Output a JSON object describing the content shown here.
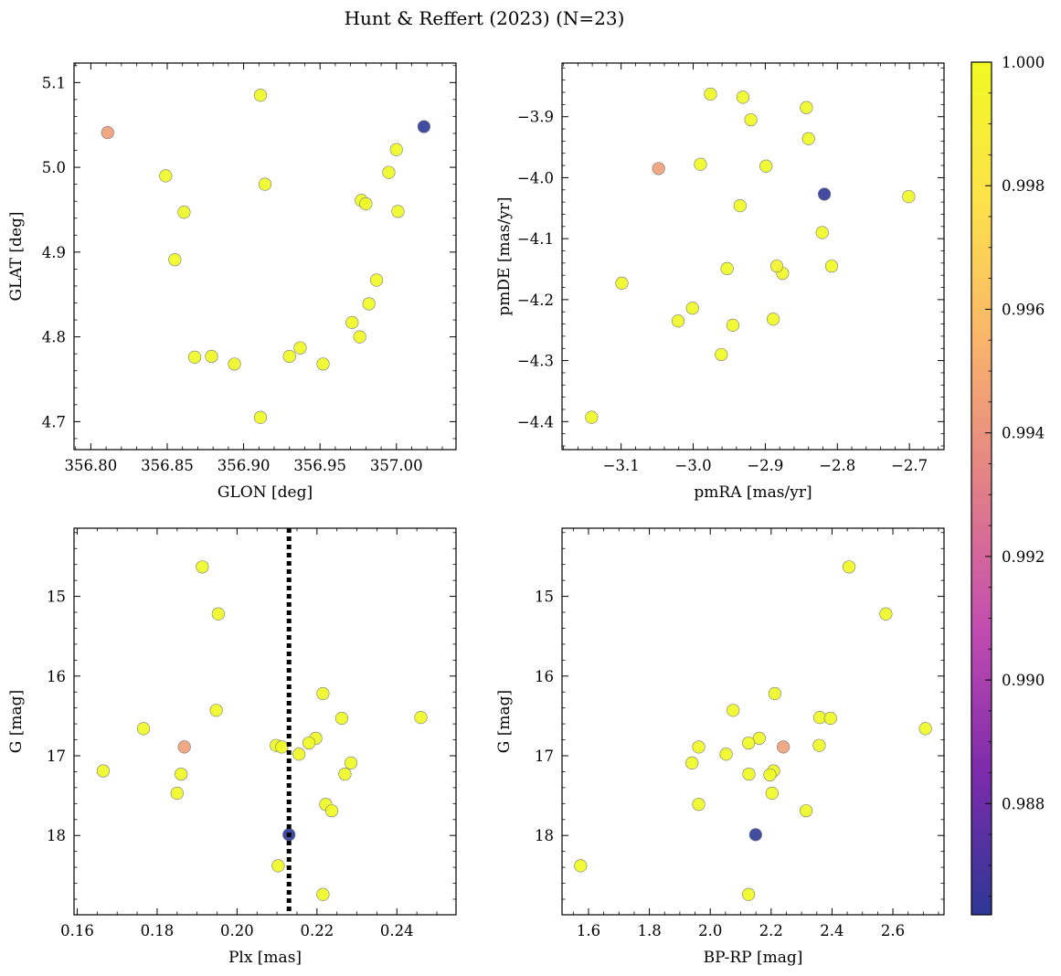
{
  "figure": {
    "title": "Hunt & Reffert (2023) (N=23)"
  },
  "chart_data": [
    {
      "type": "scatter",
      "xlabel": "GLON [deg]",
      "ylabel": "GLAT [deg]",
      "xlim": [
        356.789,
        357.039
      ],
      "ylim": [
        4.667,
        5.123
      ],
      "xticks": [
        356.8,
        356.85,
        356.9,
        356.95,
        357.0
      ],
      "xtick_labels": [
        "356.80",
        "356.85",
        "356.90",
        "356.95",
        "357.00"
      ],
      "yticks": [
        4.7,
        4.8,
        4.9,
        5.0,
        5.1
      ],
      "ytick_labels": [
        "4.7",
        "4.8",
        "4.9",
        "5.0",
        "5.1"
      ],
      "xminor": 0.01,
      "yminor": 0.02,
      "points": [
        {
          "x": 356.811,
          "y": 5.041,
          "c": 0.9945
        },
        {
          "x": 357.018,
          "y": 5.048,
          "c": 0.9862
        },
        {
          "x": 356.911,
          "y": 5.085,
          "c": 1.0
        },
        {
          "x": 356.849,
          "y": 4.99,
          "c": 1.0
        },
        {
          "x": 356.914,
          "y": 4.98,
          "c": 1.0
        },
        {
          "x": 356.861,
          "y": 4.947,
          "c": 1.0
        },
        {
          "x": 356.855,
          "y": 4.891,
          "c": 1.0
        },
        {
          "x": 357.0,
          "y": 5.021,
          "c": 1.0
        },
        {
          "x": 356.995,
          "y": 4.994,
          "c": 1.0
        },
        {
          "x": 356.977,
          "y": 4.961,
          "c": 1.0
        },
        {
          "x": 356.98,
          "y": 4.957,
          "c": 1.0
        },
        {
          "x": 357.001,
          "y": 4.948,
          "c": 1.0
        },
        {
          "x": 356.987,
          "y": 4.867,
          "c": 1.0
        },
        {
          "x": 356.982,
          "y": 4.839,
          "c": 1.0
        },
        {
          "x": 356.971,
          "y": 4.817,
          "c": 1.0
        },
        {
          "x": 356.976,
          "y": 4.8,
          "c": 1.0
        },
        {
          "x": 356.868,
          "y": 4.776,
          "c": 1.0
        },
        {
          "x": 356.879,
          "y": 4.777,
          "c": 1.0
        },
        {
          "x": 356.894,
          "y": 4.768,
          "c": 1.0
        },
        {
          "x": 356.93,
          "y": 4.777,
          "c": 1.0
        },
        {
          "x": 356.937,
          "y": 4.787,
          "c": 1.0
        },
        {
          "x": 356.952,
          "y": 4.768,
          "c": 1.0
        },
        {
          "x": 356.911,
          "y": 4.705,
          "c": 1.0
        }
      ]
    },
    {
      "type": "scatter",
      "xlabel": "pmRA [mas/yr]",
      "ylabel": "pmDE [mas/yr]",
      "xlim": [
        -3.182,
        -2.652
      ],
      "ylim": [
        -4.446,
        -3.812
      ],
      "xticks": [
        -3.1,
        -3.0,
        -2.9,
        -2.8,
        -2.7
      ],
      "xtick_labels": [
        "−3.1",
        "−3.0",
        "−2.9",
        "−2.8",
        "−2.7"
      ],
      "yticks": [
        -4.4,
        -4.3,
        -4.2,
        -4.1,
        -4.0,
        -3.9
      ],
      "ytick_labels": [
        "−4.4",
        "−4.3",
        "−4.2",
        "−4.1",
        "−4.0",
        "−3.9"
      ],
      "xminor": 0.02,
      "yminor": 0.02,
      "points": [
        {
          "x": -3.048,
          "y": -3.985,
          "c": 0.9945
        },
        {
          "x": -2.818,
          "y": -4.027,
          "c": 0.9862
        },
        {
          "x": -2.976,
          "y": -3.863,
          "c": 1.0
        },
        {
          "x": -2.931,
          "y": -3.868,
          "c": 1.0
        },
        {
          "x": -2.92,
          "y": -3.905,
          "c": 1.0
        },
        {
          "x": -2.843,
          "y": -3.885,
          "c": 1.0
        },
        {
          "x": -2.84,
          "y": -3.936,
          "c": 1.0
        },
        {
          "x": -2.99,
          "y": -3.978,
          "c": 1.0
        },
        {
          "x": -2.899,
          "y": -3.981,
          "c": 1.0
        },
        {
          "x": -2.701,
          "y": -4.031,
          "c": 1.0
        },
        {
          "x": -2.935,
          "y": -4.046,
          "c": 1.0
        },
        {
          "x": -2.821,
          "y": -4.09,
          "c": 1.0
        },
        {
          "x": -2.884,
          "y": -4.145,
          "c": 0.9995
        },
        {
          "x": -2.876,
          "y": -4.157,
          "c": 1.0
        },
        {
          "x": -2.808,
          "y": -4.145,
          "c": 1.0
        },
        {
          "x": -2.953,
          "y": -4.149,
          "c": 1.0
        },
        {
          "x": -3.099,
          "y": -4.173,
          "c": 1.0
        },
        {
          "x": -3.001,
          "y": -4.214,
          "c": 1.0
        },
        {
          "x": -3.021,
          "y": -4.235,
          "c": 1.0
        },
        {
          "x": -2.889,
          "y": -4.232,
          "c": 1.0
        },
        {
          "x": -2.945,
          "y": -4.242,
          "c": 1.0
        },
        {
          "x": -2.961,
          "y": -4.29,
          "c": 1.0
        },
        {
          "x": -3.141,
          "y": -4.393,
          "c": 1.0
        }
      ]
    },
    {
      "type": "scatter",
      "xlabel": "Plx [mas]",
      "ylabel": "G [mag]",
      "xlim": [
        0.1592,
        0.2548
      ],
      "ylim": [
        18.995,
        14.145
      ],
      "xticks": [
        0.16,
        0.18,
        0.2,
        0.22,
        0.24
      ],
      "xtick_labels": [
        "0.16",
        "0.18",
        "0.20",
        "0.22",
        "0.24"
      ],
      "yticks": [
        15,
        16,
        17,
        18
      ],
      "ytick_labels": [
        "15",
        "16",
        "17",
        "18"
      ],
      "xminor": 0.005,
      "yminor": 0.2,
      "vline": {
        "x": 0.213,
        "style": "dotted",
        "color": "#000000"
      },
      "points": [
        {
          "x": 0.1868,
          "y": 16.89,
          "c": 0.9945
        },
        {
          "x": 0.213,
          "y": 17.99,
          "c": 0.9862
        },
        {
          "x": 0.1913,
          "y": 14.63,
          "c": 1.0
        },
        {
          "x": 0.1953,
          "y": 15.22,
          "c": 1.0
        },
        {
          "x": 0.2215,
          "y": 16.22,
          "c": 1.0
        },
        {
          "x": 0.1948,
          "y": 16.43,
          "c": 1.0
        },
        {
          "x": 0.2262,
          "y": 16.53,
          "c": 1.0
        },
        {
          "x": 0.246,
          "y": 16.52,
          "c": 1.0
        },
        {
          "x": 0.1766,
          "y": 16.66,
          "c": 1.0
        },
        {
          "x": 0.2197,
          "y": 16.78,
          "c": 1.0
        },
        {
          "x": 0.218,
          "y": 16.84,
          "c": 1.0
        },
        {
          "x": 0.2098,
          "y": 16.87,
          "c": 1.0
        },
        {
          "x": 0.2112,
          "y": 16.89,
          "c": 1.0
        },
        {
          "x": 0.2155,
          "y": 16.98,
          "c": 1.0
        },
        {
          "x": 0.2285,
          "y": 17.09,
          "c": 1.0
        },
        {
          "x": 0.1665,
          "y": 17.19,
          "c": 1.0
        },
        {
          "x": 0.186,
          "y": 17.23,
          "c": 1.0
        },
        {
          "x": 0.227,
          "y": 17.23,
          "c": 1.0
        },
        {
          "x": 0.185,
          "y": 17.47,
          "c": 1.0
        },
        {
          "x": 0.2222,
          "y": 17.61,
          "c": 1.0
        },
        {
          "x": 0.2237,
          "y": 17.69,
          "c": 1.0
        },
        {
          "x": 0.2103,
          "y": 18.38,
          "c": 1.0
        },
        {
          "x": 0.2215,
          "y": 18.74,
          "c": 1.0
        }
      ]
    },
    {
      "type": "scatter",
      "xlabel": "BP-RP [mag]",
      "ylabel": "G [mag]",
      "xlim": [
        1.513,
        2.768
      ],
      "ylim": [
        18.995,
        14.145
      ],
      "xticks": [
        1.6,
        1.8,
        2.0,
        2.2,
        2.4,
        2.6
      ],
      "xtick_labels": [
        "1.6",
        "1.8",
        "2.0",
        "2.2",
        "2.4",
        "2.6"
      ],
      "yticks": [
        15,
        16,
        17,
        18
      ],
      "ytick_labels": [
        "15",
        "16",
        "17",
        "18"
      ],
      "xminor": 0.05,
      "yminor": 0.2,
      "points": [
        {
          "x": 2.24,
          "y": 16.89,
          "c": 0.9945
        },
        {
          "x": 2.149,
          "y": 17.99,
          "c": 0.9862
        },
        {
          "x": 2.456,
          "y": 14.63,
          "c": 1.0
        },
        {
          "x": 2.577,
          "y": 15.22,
          "c": 1.0
        },
        {
          "x": 2.212,
          "y": 16.22,
          "c": 1.0
        },
        {
          "x": 2.075,
          "y": 16.43,
          "c": 1.0
        },
        {
          "x": 2.36,
          "y": 16.52,
          "c": 1.0
        },
        {
          "x": 2.395,
          "y": 16.53,
          "c": 1.0
        },
        {
          "x": 2.707,
          "y": 16.66,
          "c": 1.0
        },
        {
          "x": 2.161,
          "y": 16.78,
          "c": 1.0
        },
        {
          "x": 2.126,
          "y": 16.84,
          "c": 1.0
        },
        {
          "x": 2.358,
          "y": 16.87,
          "c": 1.0
        },
        {
          "x": 1.962,
          "y": 16.89,
          "c": 1.0
        },
        {
          "x": 2.052,
          "y": 16.98,
          "c": 1.0
        },
        {
          "x": 1.94,
          "y": 17.09,
          "c": 1.0
        },
        {
          "x": 2.208,
          "y": 17.19,
          "c": 1.0
        },
        {
          "x": 2.127,
          "y": 17.23,
          "c": 1.0
        },
        {
          "x": 2.196,
          "y": 17.24,
          "c": 1.0
        },
        {
          "x": 2.203,
          "y": 17.47,
          "c": 1.0
        },
        {
          "x": 1.962,
          "y": 17.61,
          "c": 1.0
        },
        {
          "x": 2.315,
          "y": 17.69,
          "c": 1.0
        },
        {
          "x": 1.574,
          "y": 18.38,
          "c": 1.0
        },
        {
          "x": 2.126,
          "y": 18.74,
          "c": 1.0
        }
      ]
    }
  ],
  "colorbar": {
    "cmap": "plasma",
    "cmap_colors": [
      "#2d3896",
      "#7c2bab",
      "#c24bb1",
      "#e27f88",
      "#f9b26c",
      "#fde14b",
      "#f0f921"
    ],
    "vmin": 0.9862,
    "vmax": 1.0,
    "ticks": [
      0.988,
      0.99,
      0.992,
      0.994,
      0.996,
      0.998,
      1.0
    ],
    "tick_labels": [
      "0.988",
      "0.990",
      "0.992",
      "0.994",
      "0.996",
      "0.998",
      "1.000"
    ],
    "minor": 0.0005
  }
}
